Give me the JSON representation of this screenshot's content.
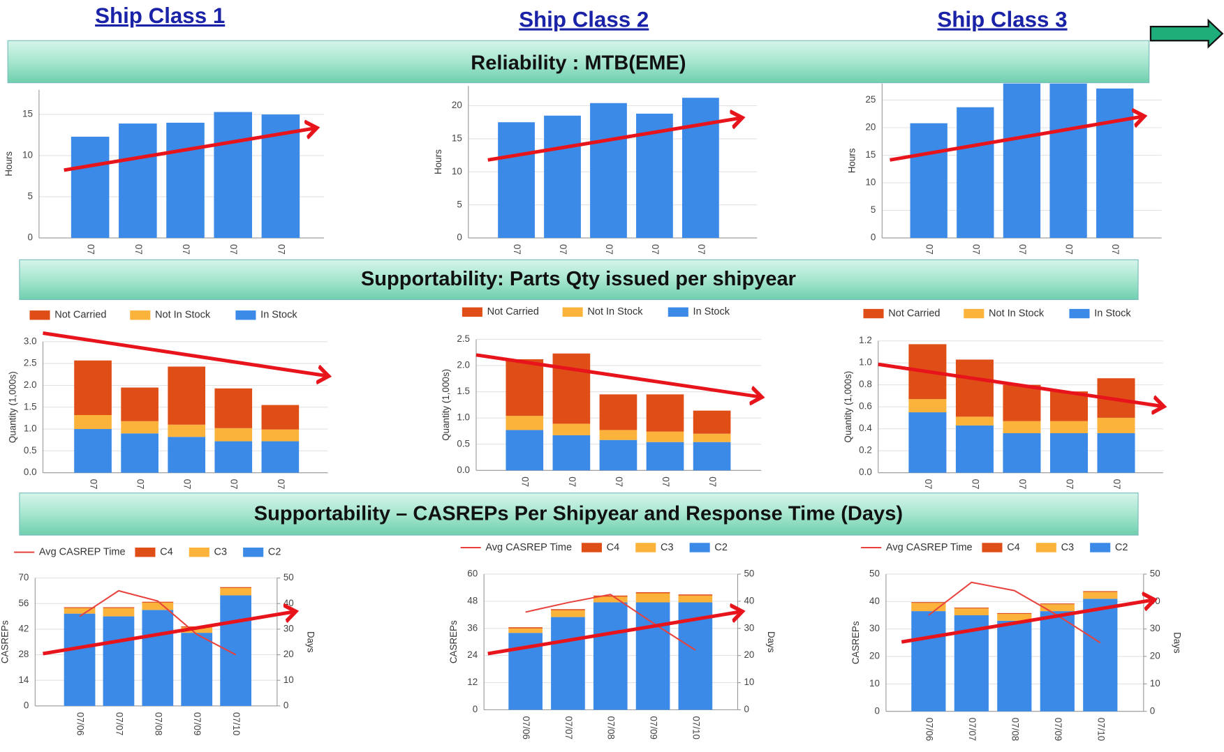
{
  "header": {
    "columns": [
      "Ship Class 1",
      "Ship Class 2",
      "Ship Class 3"
    ]
  },
  "sections": [
    "Reliability : MTB(EME)",
    "Supportability:  Parts Qty issued per shipyear",
    "Supportability – CASREPs Per Shipyear  and Response Time (Days)"
  ],
  "chart_data": [
    {
      "type": "bar",
      "y_label": "Hours",
      "categories": [
        "07",
        "07",
        "07",
        "07",
        "07"
      ],
      "values": [
        12.3,
        13.9,
        14.0,
        15.3,
        15.0
      ],
      "color": "#3b8ae8",
      "ylim": [
        0,
        18
      ],
      "yticks": [
        0,
        5,
        10,
        15
      ],
      "grid": true
    },
    {
      "type": "bar",
      "y_label": "Hours",
      "categories": [
        "07",
        "07",
        "07",
        "07",
        "07"
      ],
      "values": [
        17.5,
        18.5,
        20.4,
        18.8,
        21.2
      ],
      "color": "#3b8ae8",
      "ylim": [
        0,
        23
      ],
      "yticks": [
        0,
        5,
        10,
        15,
        20
      ],
      "grid": true
    },
    {
      "type": "bar",
      "y_label": "Hours",
      "categories": [
        "07",
        "07",
        "07",
        "07",
        "07"
      ],
      "values": [
        20.8,
        23.7,
        28,
        28,
        27.1
      ],
      "color": "#3b8ae8",
      "ylim": [
        0,
        28
      ],
      "yticks": [
        0,
        5,
        10,
        15,
        20,
        25
      ],
      "grid": true
    },
    {
      "type": "stacked_bar",
      "y_label": "Quantity (1,000s)",
      "categories": [
        "07",
        "07",
        "07",
        "07",
        "07"
      ],
      "series": [
        {
          "name": "Not Carried",
          "color": "#e04e17",
          "values": [
            1.25,
            0.77,
            1.33,
            0.91,
            0.56
          ]
        },
        {
          "name": "Not In Stock",
          "color": "#fbb33b",
          "values": [
            0.32,
            0.28,
            0.28,
            0.3,
            0.27
          ]
        },
        {
          "name": "In Stock",
          "color": "#3b8ae8",
          "values": [
            1.0,
            0.9,
            0.82,
            0.72,
            0.72
          ]
        }
      ],
      "ylim": [
        0,
        3
      ],
      "yticks": [
        {
          "value": 0,
          "label": "0.0"
        },
        0.5,
        {
          "value": 1,
          "label": "1.0"
        },
        1.5,
        {
          "value": 2,
          "label": "2.0"
        },
        2.5,
        {
          "value": 3,
          "label": "3.0"
        }
      ],
      "grid": true
    },
    {
      "type": "stacked_bar",
      "y_label": "Quantity (1,000s)",
      "categories": [
        "07",
        "07",
        "07",
        "07",
        "07"
      ],
      "series": [
        {
          "name": "Not Carried",
          "color": "#e04e17",
          "values": [
            1.08,
            1.34,
            0.68,
            0.71,
            0.44
          ]
        },
        {
          "name": "Not In Stock",
          "color": "#fbb33b",
          "values": [
            0.27,
            0.22,
            0.19,
            0.2,
            0.16
          ]
        },
        {
          "name": "In Stock",
          "color": "#3b8ae8",
          "values": [
            0.77,
            0.67,
            0.58,
            0.54,
            0.54
          ]
        }
      ],
      "ylim": [
        0,
        2.5
      ],
      "yticks": [
        {
          "value": 0,
          "label": "0.0"
        },
        0.5,
        {
          "value": 1,
          "label": "1.0"
        },
        1.5,
        {
          "value": 2,
          "label": "2.0"
        },
        2.5
      ],
      "grid": true
    },
    {
      "type": "stacked_bar",
      "y_label": "Quantity (1,000s)",
      "categories": [
        "07",
        "07",
        "07",
        "07",
        "07"
      ],
      "series": [
        {
          "name": "Not Carried",
          "color": "#e04e17",
          "values": [
            0.5,
            0.52,
            0.33,
            0.27,
            0.36
          ]
        },
        {
          "name": "Not In Stock",
          "color": "#fbb33b",
          "values": [
            0.12,
            0.08,
            0.11,
            0.11,
            0.14
          ]
        },
        {
          "name": "In Stock",
          "color": "#3b8ae8",
          "values": [
            0.55,
            0.43,
            0.36,
            0.36,
            0.36
          ]
        }
      ],
      "ylim": [
        0,
        1.2
      ],
      "yticks": [
        {
          "value": 0,
          "label": "0.0"
        },
        0.2,
        0.4,
        0.6,
        0.8,
        {
          "value": 1,
          "label": "1.0"
        },
        1.2
      ],
      "grid": true
    },
    {
      "type": "combo",
      "y_label": "CASREPs",
      "y2_label": "Days",
      "categories": [
        "07/06",
        "07/07",
        "07/08",
        "07/09",
        "07/10"
      ],
      "series": [
        {
          "name": "Avg CASREP Time",
          "color": "#e8413c",
          "axis": "y2",
          "values": [
            35,
            45,
            41,
            28,
            20
          ]
        },
        {
          "name": "C4",
          "color": "#e04e17",
          "values": [
            0.5,
            0.5,
            0.5,
            0.5,
            0.5
          ]
        },
        {
          "name": "C3",
          "color": "#fbb33b",
          "values": [
            3,
            4.5,
            4,
            3,
            4
          ]
        },
        {
          "name": "C2",
          "color": "#3b8ae8",
          "values": [
            50.5,
            49,
            52.5,
            40,
            60.5
          ]
        }
      ],
      "ylim": [
        0,
        70
      ],
      "yticks": [
        0,
        14,
        28,
        42,
        56,
        70
      ],
      "y2lim": [
        0,
        50
      ],
      "y2ticks": [
        0,
        10,
        20,
        30,
        40,
        50
      ],
      "grid": true
    },
    {
      "type": "combo",
      "y_label": "CASREPs",
      "y2_label": "Days",
      "categories": [
        "07/06",
        "07/07",
        "07/08",
        "07/09",
        "07/10"
      ],
      "series": [
        {
          "name": "Avg CASREP Time",
          "color": "#e8413c",
          "axis": "y2",
          "values": [
            36,
            39.5,
            42.5,
            32,
            22
          ]
        },
        {
          "name": "C4",
          "color": "#e04e17",
          "values": [
            0.5,
            0.5,
            0.5,
            0.5,
            0.5
          ]
        },
        {
          "name": "C3",
          "color": "#fbb33b",
          "values": [
            2,
            3,
            2.5,
            4,
            3
          ]
        },
        {
          "name": "C2",
          "color": "#3b8ae8",
          "values": [
            34,
            41,
            47.5,
            47.5,
            47.5
          ]
        }
      ],
      "ylim": [
        0,
        60
      ],
      "yticks": [
        0,
        12,
        24,
        36,
        48,
        60
      ],
      "y2lim": [
        0,
        50
      ],
      "y2ticks": [
        0,
        10,
        20,
        30,
        40,
        50
      ],
      "grid": true
    },
    {
      "type": "combo",
      "y_label": "CASREPs",
      "y2_label": "Days",
      "categories": [
        "07/06",
        "07/07",
        "07/08",
        "07/09",
        "07/10"
      ],
      "series": [
        {
          "name": "Avg CASREP Time",
          "color": "#e8413c",
          "axis": "y2",
          "values": [
            35,
            47,
            44,
            35,
            25
          ]
        },
        {
          "name": "C4",
          "color": "#e04e17",
          "values": [
            0.3,
            0.3,
            0.3,
            0.3,
            0.3
          ]
        },
        {
          "name": "C3",
          "color": "#fbb33b",
          "values": [
            3,
            2.5,
            2.5,
            2.5,
            2.5
          ]
        },
        {
          "name": "C2",
          "color": "#3b8ae8",
          "values": [
            36.5,
            35,
            33,
            36.5,
            41
          ]
        }
      ],
      "ylim": [
        0,
        50
      ],
      "yticks": [
        0,
        10,
        20,
        30,
        40,
        50
      ],
      "y2lim": [
        0,
        50
      ],
      "y2ticks": [
        0,
        10,
        20,
        30,
        40,
        50
      ],
      "grid": true
    }
  ]
}
